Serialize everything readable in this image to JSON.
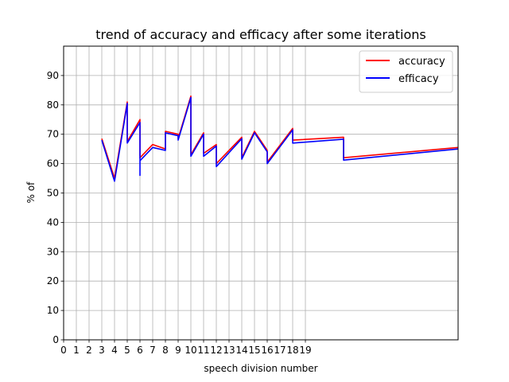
{
  "chart_data": {
    "type": "line",
    "title": "trend of accuracy and efficacy after some iterations",
    "xlabel": "speech division number",
    "ylabel": "% of",
    "xlim": [
      0,
      31
    ],
    "ylim": [
      0,
      100
    ],
    "x_ticks": [
      0,
      1,
      2,
      3,
      4,
      5,
      6,
      7,
      8,
      9,
      10,
      11,
      12,
      13,
      14,
      15,
      16,
      17,
      18,
      19
    ],
    "x_tick_labels": [
      "0",
      "1",
      "2",
      "3",
      "4",
      "5",
      "6",
      "7",
      "8",
      "9",
      "10",
      "11",
      "12",
      "13",
      "14",
      "15",
      "16",
      "17",
      "18",
      "19"
    ],
    "y_ticks": [
      0,
      10,
      20,
      30,
      40,
      50,
      60,
      70,
      80,
      90
    ],
    "y_tick_labels": [
      "0",
      "10",
      "20",
      "30",
      "40",
      "50",
      "60",
      "70",
      "80",
      "90"
    ],
    "grid": true,
    "legend_position": "top-right",
    "series": [
      {
        "name": "accuracy",
        "color": "#ff0000",
        "points": [
          [
            3,
            68.5
          ],
          [
            4,
            55
          ],
          [
            5,
            81
          ],
          [
            5,
            67.5
          ],
          [
            6,
            75
          ],
          [
            6,
            62
          ],
          [
            7,
            66.5
          ],
          [
            8,
            65
          ],
          [
            8,
            71
          ],
          [
            9,
            70
          ],
          [
            9,
            68.5
          ],
          [
            10,
            83
          ],
          [
            10,
            63
          ],
          [
            11,
            70.5
          ],
          [
            11,
            63.5
          ],
          [
            12,
            66.5
          ],
          [
            12,
            60
          ],
          [
            14,
            69
          ],
          [
            14,
            62
          ],
          [
            15,
            71
          ],
          [
            16,
            64.5
          ],
          [
            16,
            60.5
          ],
          [
            18,
            72
          ],
          [
            18,
            68
          ],
          [
            22,
            69
          ],
          [
            22,
            62
          ],
          [
            31,
            65.5
          ]
        ]
      },
      {
        "name": "efficacy",
        "color": "#0000ff",
        "points": [
          [
            3,
            68
          ],
          [
            4,
            54
          ],
          [
            5,
            80.5
          ],
          [
            5,
            67
          ],
          [
            6,
            74
          ],
          [
            6,
            56
          ],
          [
            6,
            61
          ],
          [
            7,
            65.5
          ],
          [
            8,
            64.5
          ],
          [
            8,
            70.5
          ],
          [
            9,
            69.5
          ],
          [
            9,
            68
          ],
          [
            10,
            82.5
          ],
          [
            10,
            62.5
          ],
          [
            11,
            70
          ],
          [
            11,
            62.5
          ],
          [
            12,
            66
          ],
          [
            12,
            59
          ],
          [
            14,
            68.5
          ],
          [
            14,
            61.5
          ],
          [
            15,
            70.5
          ],
          [
            16,
            64
          ],
          [
            16,
            60
          ],
          [
            18,
            71.5
          ],
          [
            18,
            67
          ],
          [
            22,
            68.3
          ],
          [
            22,
            61.2
          ],
          [
            31,
            65
          ]
        ]
      }
    ]
  }
}
